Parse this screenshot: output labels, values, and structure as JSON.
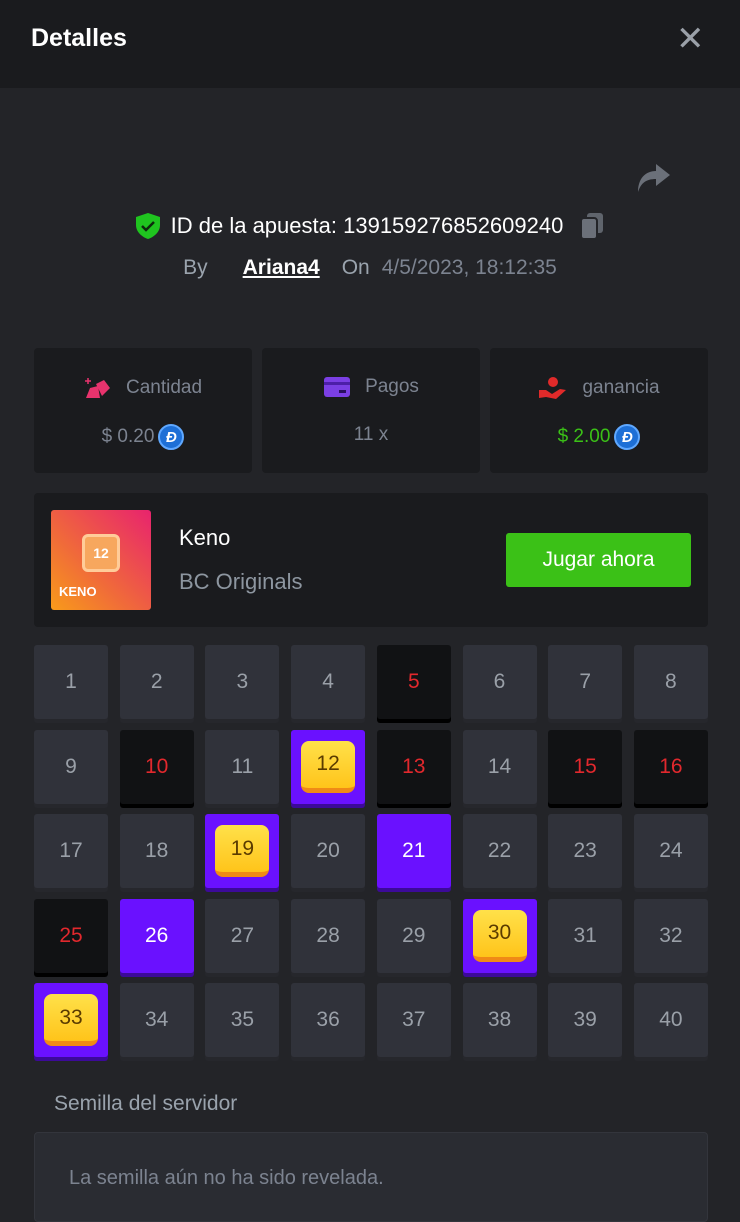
{
  "header": {
    "title": "Detalles",
    "close_icon": "close-icon"
  },
  "bet": {
    "id_label": "ID de la apuesta:",
    "id": "139159276852609240",
    "by_label": "By",
    "user": "Ariana4",
    "on_label": "On",
    "date": "4/5/2023, 18:12:35"
  },
  "stats": [
    {
      "label": "Cantidad",
      "value": "$ 0.20",
      "icon": "bet-amount-icon",
      "color": "#e8336d",
      "currency": "DGB"
    },
    {
      "label": "Pagos",
      "value": "11 x",
      "icon": "card-icon",
      "color": "#7b3fe4"
    },
    {
      "label": "ganancia",
      "value": "$ 2.00",
      "icon": "profit-hand-icon",
      "color": "#e02a2a",
      "value_color": "#3bc117",
      "currency": "DGB"
    }
  ],
  "game": {
    "name": "Keno",
    "provider": "BC Originals",
    "thumb_text": "KENO",
    "thumb_number": "12",
    "play_label": "Jugar ahora"
  },
  "grid": {
    "numbers": [
      1,
      2,
      3,
      4,
      5,
      6,
      7,
      8,
      9,
      10,
      11,
      12,
      13,
      14,
      15,
      16,
      17,
      18,
      19,
      20,
      21,
      22,
      23,
      24,
      25,
      26,
      27,
      28,
      29,
      30,
      31,
      32,
      33,
      34,
      35,
      36,
      37,
      38,
      39,
      40
    ],
    "hits": [
      12,
      19,
      30,
      33
    ],
    "selected_miss": [
      21,
      26
    ],
    "drawn_not_selected": [
      5,
      10,
      13,
      15,
      16,
      25
    ]
  },
  "seed": {
    "label": "Semilla del servidor",
    "value": "La semilla aún no ha sido revelada."
  }
}
